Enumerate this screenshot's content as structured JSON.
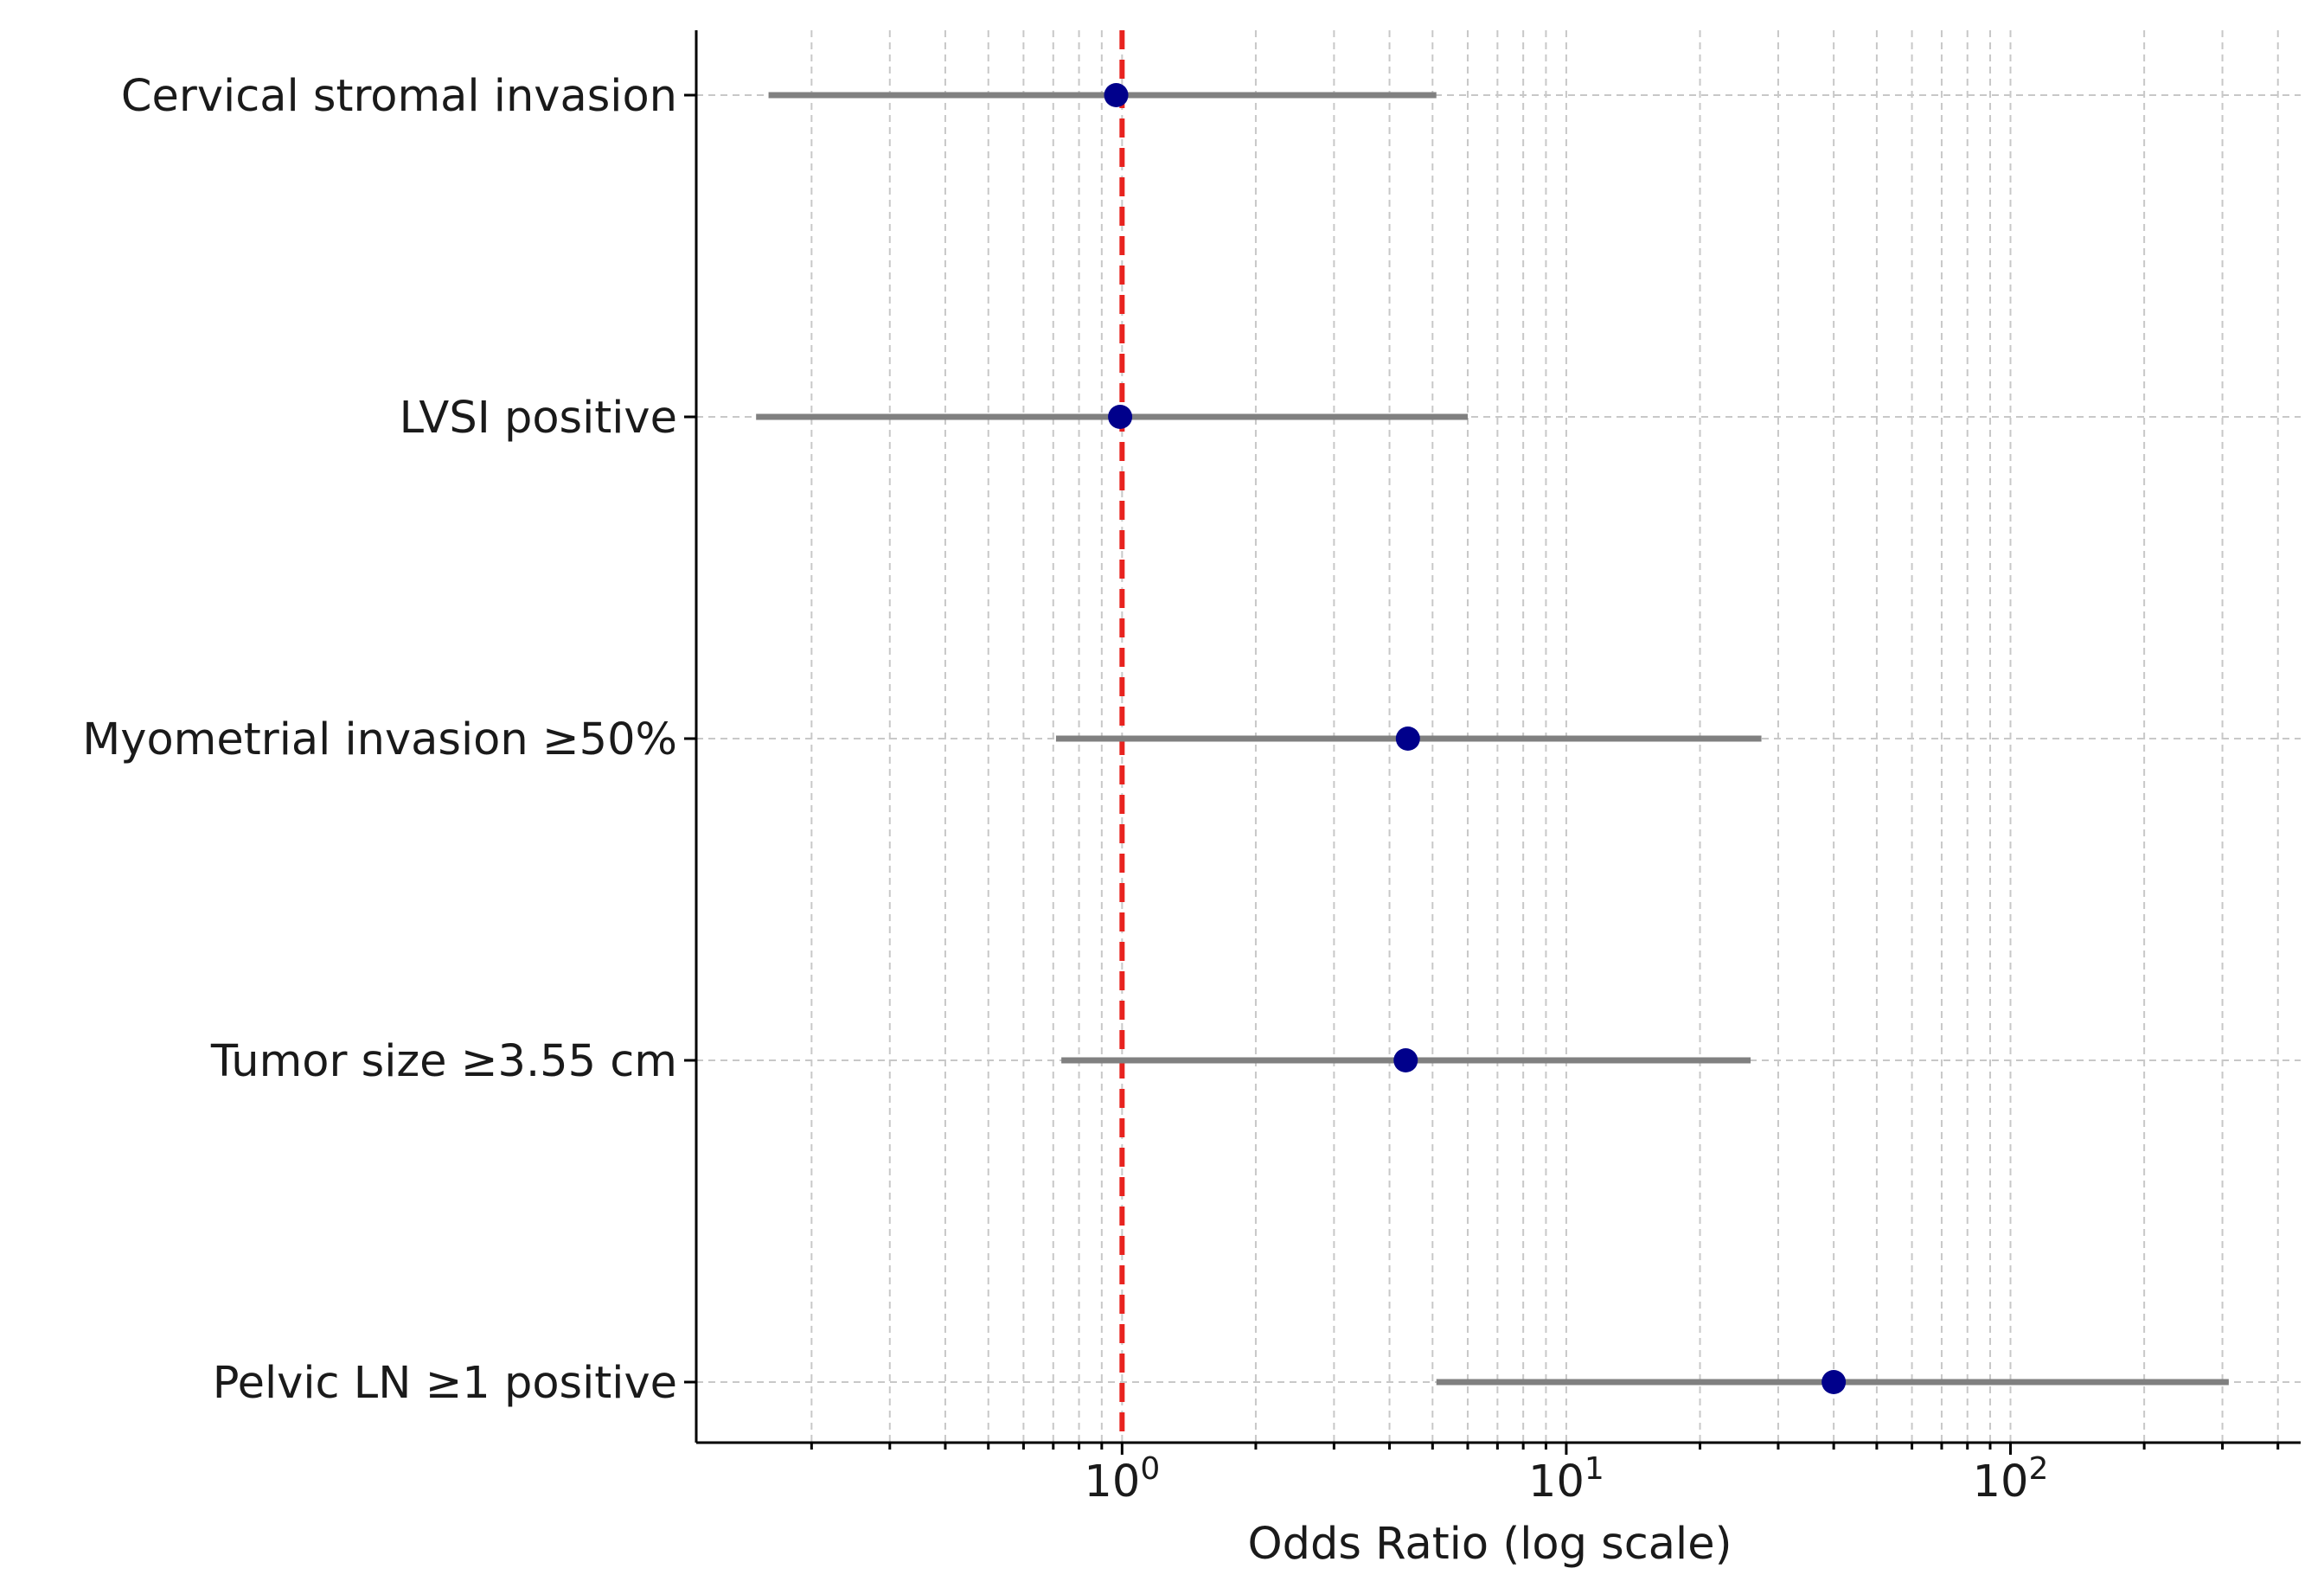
{
  "chart_data": {
    "type": "forest",
    "title": "",
    "xlabel": "Odds Ratio (log scale)",
    "ylabel": "",
    "xscale": "log",
    "xlim": [
      0.11,
      450
    ],
    "xticks": [
      {
        "value": 1,
        "base": "10",
        "exp": "0"
      },
      {
        "value": 10,
        "base": "10",
        "exp": "1"
      },
      {
        "value": 100,
        "base": "10",
        "exp": "2"
      }
    ],
    "reference_line": {
      "value": 1,
      "color": "#e8231f",
      "style": "dashed"
    },
    "grid": true,
    "rows": [
      {
        "label": "Cervical stromal invasion",
        "or": 0.97,
        "ci_low": 0.16,
        "ci_high": 5.1
      },
      {
        "label": "LVSI positive",
        "or": 0.99,
        "ci_low": 0.15,
        "ci_high": 6.0
      },
      {
        "label": "Myometrial invasion ≥50%",
        "or": 4.4,
        "ci_low": 0.71,
        "ci_high": 27.5
      },
      {
        "label": "Tumor size ≥3.55 cm",
        "or": 4.35,
        "ci_low": 0.73,
        "ci_high": 26.0
      },
      {
        "label": "Pelvic LN ≥1 positive",
        "or": 40,
        "ci_low": 5.1,
        "ci_high": 310
      }
    ],
    "colors": {
      "point": "#00008b",
      "ci_line": "#808080",
      "grid": "#c8c8c8",
      "axis": "#000000"
    }
  }
}
